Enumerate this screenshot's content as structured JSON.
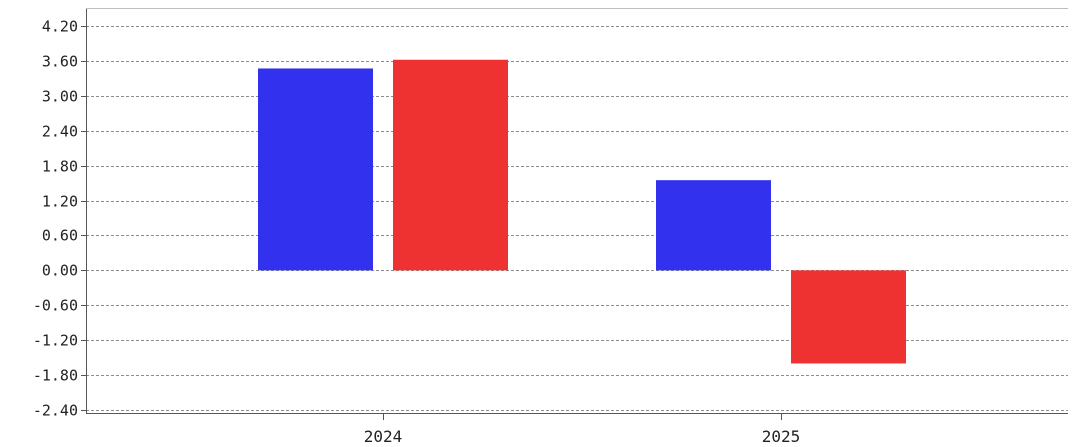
{
  "chart_data": {
    "type": "bar",
    "categories": [
      "2024",
      "2025"
    ],
    "series": [
      {
        "values": [
          3.47,
          1.55
        ]
      },
      {
        "values": [
          3.62,
          -1.6
        ]
      }
    ],
    "ylim": [
      -2.4,
      4.2
    ],
    "y_ticks": [
      "4.20",
      "3.60",
      "3.00",
      "2.40",
      "1.80",
      "1.20",
      "0.60",
      "0.00",
      "-0.60",
      "-1.20",
      "-1.80",
      "-2.40"
    ],
    "grid": true,
    "grid_style": "dashed-horizontal",
    "colors": {
      "series_1": "#3232ee",
      "series_2": "#ee3232",
      "grid": "#8c8c8c",
      "axis": "#555555"
    },
    "title": "",
    "xlabel": "",
    "ylabel": ""
  }
}
